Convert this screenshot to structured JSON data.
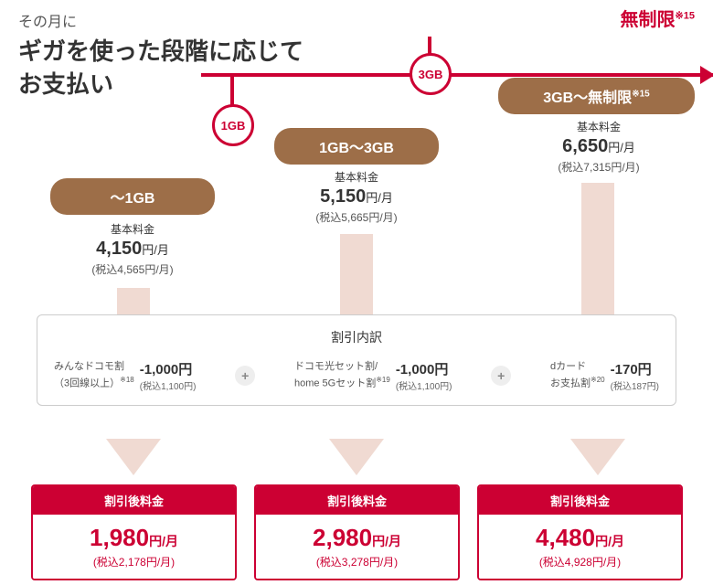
{
  "header": {
    "sub": "その月に",
    "main": "ギガを使った段階に応じて\nお支払い"
  },
  "unlimited": {
    "text": "無制限",
    "note": "※15"
  },
  "circles": {
    "c1": "1GB",
    "c2": "3GB"
  },
  "badges": {
    "b1": "〜1GB",
    "b2": "1GB〜3GB",
    "b3": "3GB〜無制限",
    "b3note": "※15"
  },
  "basePrices": [
    {
      "label": "基本料金",
      "amount": "4,150",
      "unit": "円/月",
      "tax": "(税込4,565円/月)"
    },
    {
      "label": "基本料金",
      "amount": "5,150",
      "unit": "円/月",
      "tax": "(税込5,665円/月)"
    },
    {
      "label": "基本料金",
      "amount": "6,650",
      "unit": "円/月",
      "tax": "(税込7,315円/月)"
    }
  ],
  "discountBox": {
    "title": "割引内訳",
    "items": [
      {
        "text1": "みんなドコモ割",
        "text2": "（3回線以上）",
        "note": "※18",
        "amount": "-1,000円",
        "tax": "(税込1,100円)"
      },
      {
        "text1": "ドコモ光セット割/",
        "text2": "home 5Gセット割",
        "note": "※19",
        "amount": "-1,000円",
        "tax": "(税込1,100円)"
      },
      {
        "text1": "dカード",
        "text2": "お支払割",
        "note": "※20",
        "amount": "-170円",
        "tax": "(税込187円)"
      }
    ]
  },
  "results": [
    {
      "head": "割引後料金",
      "price": "1,980",
      "unit": "円/月",
      "tax": "(税込2,178円/月)"
    },
    {
      "head": "割引後料金",
      "price": "2,980",
      "unit": "円/月",
      "tax": "(税込3,278円/月)"
    },
    {
      "head": "割引後料金",
      "price": "4,480",
      "unit": "円/月",
      "tax": "(税込4,928円/月)"
    }
  ]
}
